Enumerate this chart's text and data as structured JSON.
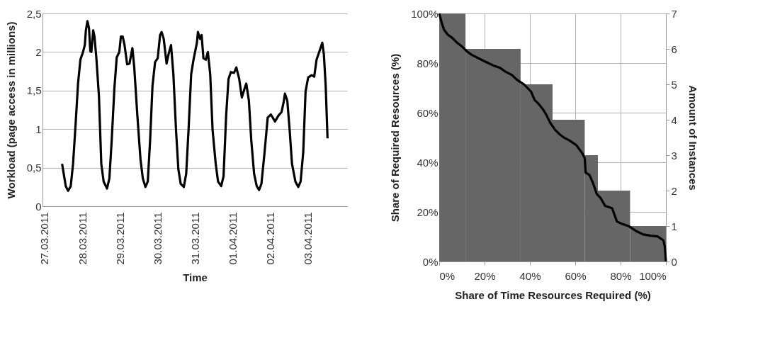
{
  "chart_data": [
    {
      "type": "line",
      "xlabel": "Time",
      "ylabel": "Workload (page access in millions)",
      "grid": "y",
      "line_style": "solid",
      "marker": "none",
      "xlim": [
        "2011-03-26T22:40",
        "2011-04-04T01:00"
      ],
      "xticks": [
        {
          "value": "2011-03-27",
          "label": "27.03.2011"
        },
        {
          "value": "2011-03-28",
          "label": "28.03.2011"
        },
        {
          "value": "2011-03-29",
          "label": "29.03.2011"
        },
        {
          "value": "2011-03-30",
          "label": "30.03.2011"
        },
        {
          "value": "2011-03-31",
          "label": "31.03.2011"
        },
        {
          "value": "2011-04-01",
          "label": "01.04.2011"
        },
        {
          "value": "2011-04-02",
          "label": "02.04.2011"
        },
        {
          "value": "2011-04-03",
          "label": "03.04.2011"
        }
      ],
      "ylim": [
        0,
        2.5
      ],
      "yticks": [
        {
          "value": 0,
          "label": "0"
        },
        {
          "value": 0.5,
          "label": "0,5"
        },
        {
          "value": 1,
          "label": "1"
        },
        {
          "value": 1.5,
          "label": "1,5"
        },
        {
          "value": 2,
          "label": "2"
        },
        {
          "value": 2.5,
          "label": "2,5"
        }
      ],
      "x": [
        "2011-03-27T11:10",
        "2011-03-27T13:30",
        "2011-03-27T15:00",
        "2011-03-27T16:40",
        "2011-03-27T18:10",
        "2011-03-27T19:50",
        "2011-03-27T21:20",
        "2011-03-27T22:50",
        "2011-03-28T00:30",
        "2011-03-28T01:40",
        "2011-03-28T02:20",
        "2011-03-28T03:20",
        "2011-03-28T04:20",
        "2011-03-28T05:10",
        "2011-03-28T05:50",
        "2011-03-28T07:00",
        "2011-03-28T07:50",
        "2011-03-28T09:00",
        "2011-03-28T10:40",
        "2011-03-28T12:10",
        "2011-03-28T13:40",
        "2011-03-28T15:50",
        "2011-03-28T17:20",
        "2011-03-28T18:50",
        "2011-03-28T20:30",
        "2011-03-28T22:00",
        "2011-03-28T23:40",
        "2011-03-29T00:40",
        "2011-03-29T01:50",
        "2011-03-29T03:00",
        "2011-03-29T04:40",
        "2011-03-29T06:10",
        "2011-03-29T08:00",
        "2011-03-29T09:10",
        "2011-03-29T11:10",
        "2011-03-29T13:10",
        "2011-03-29T14:40",
        "2011-03-29T16:20",
        "2011-03-29T17:50",
        "2011-03-29T19:20",
        "2011-03-29T20:50",
        "2011-03-29T22:30",
        "2011-03-30T00:10",
        "2011-03-30T01:40",
        "2011-03-30T02:40",
        "2011-03-30T04:00",
        "2011-03-30T05:50",
        "2011-03-30T07:10",
        "2011-03-30T08:40",
        "2011-03-30T10:10",
        "2011-03-30T11:50",
        "2011-03-30T13:20",
        "2011-03-30T14:50",
        "2011-03-30T16:50",
        "2011-03-30T18:20",
        "2011-03-30T19:50",
        "2011-03-30T21:30",
        "2011-03-30T23:00",
        "2011-03-31T01:10",
        "2011-03-31T01:50",
        "2011-03-31T03:10",
        "2011-03-31T04:10",
        "2011-03-31T05:20",
        "2011-03-31T06:50",
        "2011-03-31T08:10",
        "2011-03-31T09:40",
        "2011-03-31T11:10",
        "2011-03-31T13:10",
        "2011-03-31T14:40",
        "2011-03-31T16:40",
        "2011-03-31T18:10",
        "2011-03-31T19:50",
        "2011-03-31T21:20",
        "2011-03-31T22:50",
        "2011-04-01T00:50",
        "2011-04-01T02:20",
        "2011-04-01T04:10",
        "2011-04-01T05:50",
        "2011-04-01T07:30",
        "2011-04-01T08:40",
        "2011-04-01T10:20",
        "2011-04-01T11:50",
        "2011-04-01T13:40",
        "2011-04-01T15:20",
        "2011-04-01T16:50",
        "2011-04-01T18:20",
        "2011-04-01T20:20",
        "2011-04-01T22:20",
        "2011-04-02T00:20",
        "2011-04-02T03:00",
        "2011-04-02T05:20",
        "2011-04-02T07:10",
        "2011-04-02T08:30",
        "2011-04-02T09:20",
        "2011-04-02T10:50",
        "2011-04-02T12:20",
        "2011-04-02T13:50",
        "2011-04-02T16:00",
        "2011-04-02T17:50",
        "2011-04-02T19:20",
        "2011-04-02T21:00",
        "2011-04-02T22:30",
        "2011-04-03T00:10",
        "2011-04-03T02:20",
        "2011-04-03T04:00",
        "2011-04-03T05:30",
        "2011-04-03T07:10",
        "2011-04-03T09:10",
        "2011-04-03T10:10",
        "2011-04-03T11:20",
        "2011-04-03T12:30"
      ],
      "series": [
        {
          "color": "#000000",
          "values": [
            0.55,
            0.26,
            0.2,
            0.26,
            0.55,
            1.08,
            1.59,
            1.9,
            2.0,
            2.09,
            2.28,
            2.4,
            2.31,
            2.01,
            2.0,
            2.28,
            2.2,
            1.93,
            1.43,
            0.55,
            0.32,
            0.23,
            0.36,
            0.86,
            1.52,
            1.93,
            2.0,
            2.2,
            2.2,
            2.09,
            1.84,
            1.85,
            2.05,
            1.81,
            1.18,
            0.61,
            0.36,
            0.25,
            0.32,
            0.86,
            1.56,
            1.87,
            1.92,
            2.22,
            2.26,
            2.17,
            1.85,
            1.98,
            2.09,
            1.71,
            0.99,
            0.48,
            0.29,
            0.25,
            0.42,
            0.99,
            1.71,
            1.9,
            2.12,
            2.26,
            2.17,
            2.22,
            1.92,
            1.9,
            2.0,
            1.71,
            0.99,
            0.55,
            0.32,
            0.26,
            0.39,
            1.18,
            1.65,
            1.74,
            1.73,
            1.8,
            1.65,
            1.41,
            1.52,
            1.59,
            1.37,
            0.86,
            0.42,
            0.26,
            0.21,
            0.29,
            0.7,
            1.15,
            1.19,
            1.1,
            1.18,
            1.22,
            1.35,
            1.46,
            1.37,
            0.99,
            0.55,
            0.32,
            0.25,
            0.32,
            0.7,
            1.49,
            1.67,
            1.7,
            1.68,
            1.9,
            2.0,
            2.12,
            1.97,
            1.56,
            0.88
          ]
        }
      ]
    },
    {
      "type": "line",
      "xlabel": "Share of Time Resources Required (%)",
      "ylabel": "Share of Required Resources (%)",
      "y2label": "Amount of Instances",
      "grid": true,
      "line_style": "solid",
      "marker": "none",
      "xlim": [
        0,
        100
      ],
      "xticks": [
        {
          "value": 0,
          "label": "0%"
        },
        {
          "value": 20,
          "label": "20%"
        },
        {
          "value": 40,
          "label": "40%"
        },
        {
          "value": 60,
          "label": "60%"
        },
        {
          "value": 80,
          "label": "80%"
        },
        {
          "value": 100,
          "label": "100%"
        }
      ],
      "ylim": [
        0,
        100
      ],
      "yticks": [
        {
          "value": 0,
          "label": "0%"
        },
        {
          "value": 20,
          "label": "20%"
        },
        {
          "value": 40,
          "label": "40%"
        },
        {
          "value": 60,
          "label": "60%"
        },
        {
          "value": 80,
          "label": "80%"
        },
        {
          "value": 100,
          "label": "100%"
        }
      ],
      "y2lim": [
        0,
        7
      ],
      "y2ticks": [
        0,
        1,
        2,
        3,
        4,
        5,
        6,
        7
      ],
      "series": [
        {
          "type": "histogram",
          "axis": "y2",
          "color": "#666666",
          "bins": [
            0,
            11.6,
            35.9,
            50,
            64.2,
            70,
            84.2,
            100
          ],
          "values": [
            7,
            6,
            5,
            4,
            3,
            2,
            1
          ]
        },
        {
          "type": "line",
          "color": "#000000",
          "x": [
            0,
            1.1,
            2.1,
            3.7,
            5.8,
            7.9,
            10,
            11.6,
            12.1,
            14.2,
            17.4,
            20.5,
            23.7,
            26.8,
            28.9,
            32.1,
            34.2,
            37.4,
            40.5,
            42.1,
            43.7,
            45.8,
            47.4,
            48.9,
            51.1,
            53.2,
            55.3,
            57.4,
            60.5,
            63.2,
            64.2,
            64.6,
            66.3,
            67.9,
            69.5,
            71.1,
            73.2,
            76.3,
            78.4,
            80.5,
            83.7,
            86.8,
            90,
            93.2,
            96.3,
            98.9,
            99.5,
            100
          ],
          "values": [
            100,
            96.3,
            93.5,
            91.5,
            90.1,
            88.2,
            86.7,
            85.3,
            84.8,
            83.4,
            81.9,
            80.5,
            79.1,
            78.1,
            76.7,
            75.2,
            73.3,
            71.4,
            68.5,
            65.1,
            63.7,
            61.3,
            58.9,
            56,
            53.1,
            51.2,
            49.8,
            48.8,
            46.9,
            43.5,
            41.6,
            35.8,
            34.9,
            31.5,
            27.2,
            25.7,
            22.4,
            21.4,
            16.1,
            15.2,
            14.2,
            12.3,
            10.9,
            10.4,
            10.1,
            8.5,
            6.1,
            0
          ]
        }
      ]
    }
  ]
}
